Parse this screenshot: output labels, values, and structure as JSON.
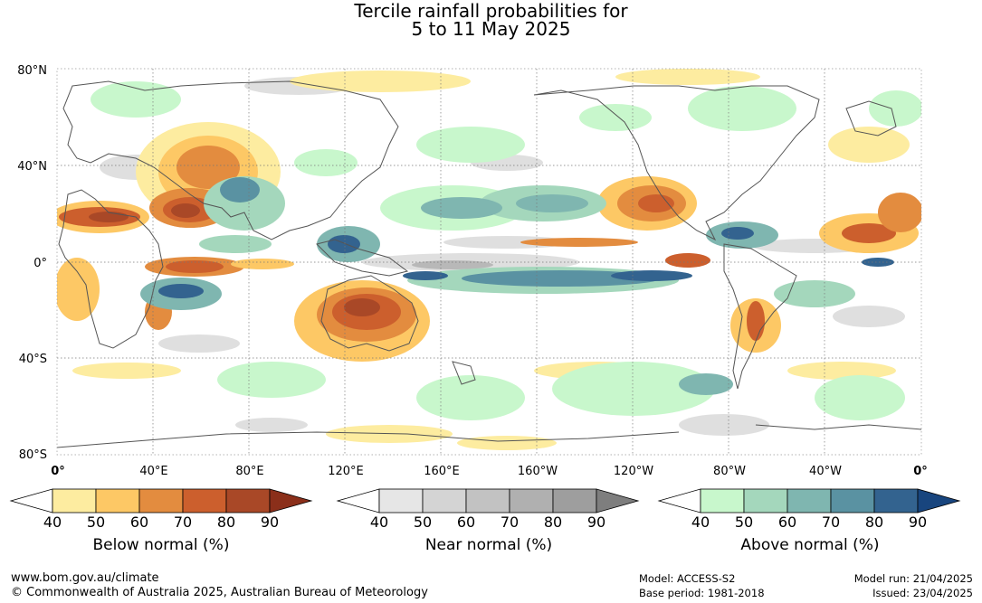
{
  "title": {
    "line1": "Tercile rainfall probabilities for",
    "line2": "5 to 11 May 2025"
  },
  "map": {
    "lat_labels": [
      "80°N",
      "40°N",
      "0°",
      "40°S",
      "80°S"
    ],
    "lon_labels": [
      "0°",
      "40°E",
      "80°E",
      "120°E",
      "160°E",
      "160°W",
      "120°W",
      "80°W",
      "40°W",
      "0°"
    ]
  },
  "legends": [
    {
      "id": "below",
      "title": "Below normal (%)",
      "ticks": [
        "40",
        "50",
        "60",
        "70",
        "80",
        "90"
      ],
      "colors": [
        "#ffffff",
        "#fdeca0",
        "#fdc865",
        "#e38c3f",
        "#cc5f2d",
        "#a94827",
        "#8b2f1a"
      ]
    },
    {
      "id": "near",
      "title": "Near normal (%)",
      "ticks": [
        "40",
        "50",
        "60",
        "70",
        "80",
        "90"
      ],
      "colors": [
        "#ffffff",
        "#e6e6e6",
        "#d4d4d4",
        "#c2c2c2",
        "#b0b0b0",
        "#9e9e9e",
        "#7e7e7e"
      ]
    },
    {
      "id": "above",
      "title": "Above normal (%)",
      "ticks": [
        "40",
        "50",
        "60",
        "70",
        "80",
        "90"
      ],
      "colors": [
        "#ffffff",
        "#c8f7cc",
        "#a4d7bc",
        "#7fb6b0",
        "#5a92a2",
        "#33638f",
        "#18457e"
      ]
    }
  ],
  "footer": {
    "url": "www.bom.gov.au/climate",
    "copyright": "© Commonwealth of Australia 2025, Australian Bureau of Meteorology",
    "model": "Model: ACCESS-S2",
    "base_period": "Base period: 1981-2018",
    "model_run": "Model run: 21/04/2025",
    "issued": "Issued: 23/04/2025"
  }
}
